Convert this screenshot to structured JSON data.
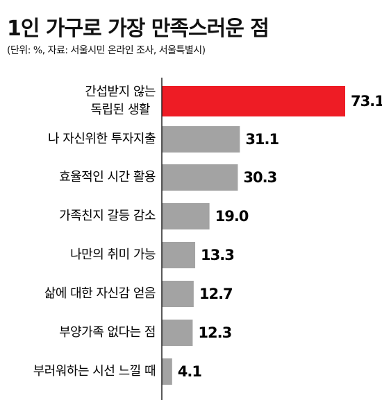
{
  "chart_data": {
    "type": "bar",
    "orientation": "horizontal",
    "title": "1인 가구로 가장 만족스러운 점",
    "subtitle": "(단위: %, 자료: 서울시민 온라인 조사, 서울특별시)",
    "categories": [
      "간섭받지 않는\n독립된 생활",
      "나 자신위한 투자지출",
      "효율적인 시간 활용",
      "가족친지 갈등 감소",
      "나만의 취미 가능",
      "삶에 대한 자신감 얻음",
      "부양가족 없다는 점",
      "부러워하는 시선 느낄 때"
    ],
    "values": [
      73.1,
      31.1,
      30.3,
      19.0,
      13.3,
      12.7,
      12.3,
      4.1
    ],
    "value_labels": [
      "73.1",
      "31.1",
      "30.3",
      "19.0",
      "13.3",
      "12.7",
      "12.3",
      "4.1"
    ],
    "colors": [
      "#ee1c25",
      "#a3a3a3",
      "#a3a3a3",
      "#a3a3a3",
      "#a3a3a3",
      "#a3a3a3",
      "#a3a3a3",
      "#a3a3a3"
    ]
  }
}
